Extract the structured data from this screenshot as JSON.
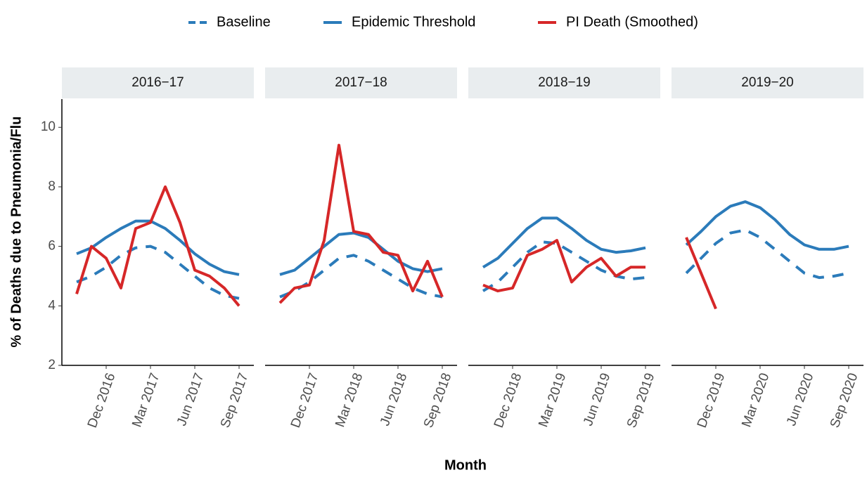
{
  "chart_data": {
    "type": "line",
    "x_label": "Month",
    "y_label": "% of Deaths due to Pneumonia/Flu",
    "ylim": [
      2,
      10.95
    ],
    "yticks": [
      2,
      4,
      6,
      8,
      10
    ],
    "series": [
      {
        "name": "Baseline",
        "color": "#2b7bba",
        "dashed": true
      },
      {
        "name": "Epidemic Threshold",
        "color": "#2b7bba",
        "dashed": false
      },
      {
        "name": "PI Death (Smoothed)",
        "color": "#d62728",
        "dashed": false
      }
    ],
    "facets": [
      {
        "title": "2016−17",
        "xlim": [
          "2016-09",
          "2017-10"
        ],
        "x": [
          "2016-10",
          "2016-11",
          "2016-12",
          "2017-01",
          "2017-02",
          "2017-03",
          "2017-04",
          "2017-05",
          "2017-06",
          "2017-07",
          "2017-08",
          "2017-09"
        ],
        "xticks": [
          {
            "value": "2016-12",
            "label": "Dec 2016"
          },
          {
            "value": "2017-03",
            "label": "Mar 2017"
          },
          {
            "value": "2017-06",
            "label": "Jun 2017"
          },
          {
            "value": "2017-09",
            "label": "Sep 2017"
          }
        ],
        "values": [
          [
            4.8,
            5.0,
            5.3,
            5.7,
            5.95,
            6.0,
            5.8,
            5.4,
            5.0,
            4.6,
            4.35,
            4.25
          ],
          [
            5.75,
            5.95,
            6.3,
            6.6,
            6.85,
            6.85,
            6.6,
            6.2,
            5.75,
            5.4,
            5.15,
            5.05
          ],
          [
            4.4,
            6.0,
            5.6,
            4.6,
            6.6,
            6.8,
            8.0,
            6.8,
            5.2,
            5.0,
            4.6,
            4.0
          ]
        ]
      },
      {
        "title": "2017−18",
        "xlim": [
          "2017-09",
          "2018-10"
        ],
        "x": [
          "2017-10",
          "2017-11",
          "2017-12",
          "2018-01",
          "2018-02",
          "2018-03",
          "2018-04",
          "2018-05",
          "2018-06",
          "2018-07",
          "2018-08",
          "2018-09"
        ],
        "xticks": [
          {
            "value": "2017-12",
            "label": "Dec 2017"
          },
          {
            "value": "2018-03",
            "label": "Mar 2018"
          },
          {
            "value": "2018-06",
            "label": "Jun 2018"
          },
          {
            "value": "2018-09",
            "label": "Sep 2018"
          }
        ],
        "values": [
          [
            4.3,
            4.5,
            4.8,
            5.2,
            5.6,
            5.7,
            5.5,
            5.2,
            4.9,
            4.6,
            4.4,
            4.3
          ],
          [
            5.05,
            5.2,
            5.6,
            6.0,
            6.4,
            6.45,
            6.3,
            5.9,
            5.5,
            5.25,
            5.15,
            5.25
          ],
          [
            4.1,
            4.6,
            4.7,
            6.2,
            9.4,
            6.5,
            6.4,
            5.8,
            5.7,
            4.5,
            5.5,
            4.3
          ]
        ]
      },
      {
        "title": "2018−19",
        "xlim": [
          "2018-09",
          "2019-10"
        ],
        "x": [
          "2018-10",
          "2018-11",
          "2018-12",
          "2019-01",
          "2019-02",
          "2019-03",
          "2019-04",
          "2019-05",
          "2019-06",
          "2019-07",
          "2019-08",
          "2019-09"
        ],
        "xticks": [
          {
            "value": "2018-12",
            "label": "Dec 2018"
          },
          {
            "value": "2019-03",
            "label": "Mar 2019"
          },
          {
            "value": "2019-06",
            "label": "Jun 2019"
          },
          {
            "value": "2019-09",
            "label": "Sep 2019"
          }
        ],
        "values": [
          [
            4.5,
            4.8,
            5.3,
            5.8,
            6.15,
            6.1,
            5.8,
            5.5,
            5.2,
            5.0,
            4.9,
            4.95
          ],
          [
            5.3,
            5.6,
            6.1,
            6.6,
            6.95,
            6.95,
            6.6,
            6.2,
            5.9,
            5.8,
            5.85,
            5.95
          ],
          [
            4.7,
            4.5,
            4.6,
            5.7,
            5.9,
            6.2,
            4.8,
            5.3,
            5.6,
            5.0,
            5.3,
            5.3
          ]
        ]
      },
      {
        "title": "2019−20",
        "xlim": [
          "2019-09",
          "2020-10"
        ],
        "x": [
          "2019-10",
          "2019-11",
          "2019-12",
          "2020-01",
          "2020-02",
          "2020-03",
          "2020-04",
          "2020-05",
          "2020-06",
          "2020-07",
          "2020-08",
          "2020-09"
        ],
        "xticks": [
          {
            "value": "2019-12",
            "label": "Dec 2019"
          },
          {
            "value": "2020-03",
            "label": "Mar 2020"
          },
          {
            "value": "2020-06",
            "label": "Jun 2020"
          },
          {
            "value": "2020-09",
            "label": "Sep 2020"
          }
        ],
        "values": [
          [
            5.1,
            5.6,
            6.1,
            6.45,
            6.55,
            6.3,
            5.9,
            5.5,
            5.1,
            4.95,
            5.0,
            5.1
          ],
          [
            6.05,
            6.5,
            7.0,
            7.35,
            7.5,
            7.3,
            6.9,
            6.4,
            6.05,
            5.9,
            5.9,
            6.0
          ],
          [
            6.3,
            5.1,
            3.9,
            null,
            null,
            null,
            null,
            null,
            null,
            null,
            null,
            null
          ]
        ]
      }
    ]
  }
}
